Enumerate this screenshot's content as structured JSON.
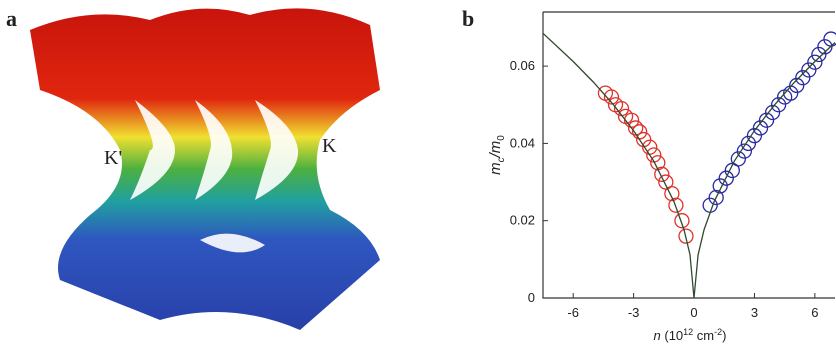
{
  "panel_a": {
    "label": "a",
    "valley_left": "K'",
    "valley_right": "K"
  },
  "chart_data": {
    "type": "scatter",
    "panel_label": "b",
    "x_label": [
      "n",
      " (10",
      "12",
      " cm",
      "-2",
      ")"
    ],
    "y_label": [
      "m",
      "c",
      "/m",
      "0"
    ],
    "xlim": [
      -7.5,
      7
    ],
    "ylim": [
      0,
      0.074
    ],
    "xticks": [
      -6,
      -3,
      0,
      3,
      6
    ],
    "yticks": [
      0,
      0.02,
      0.04,
      0.06
    ],
    "series": [
      {
        "mode": "markers",
        "color": "#e0302a",
        "x": [
          -4.4,
          -4.1,
          -3.9,
          -3.6,
          -3.4,
          -3.1,
          -2.9,
          -2.7,
          -2.5,
          -2.2,
          -2.0,
          -1.8,
          -1.6,
          -1.4,
          -1.1,
          -0.9,
          -0.6,
          -0.4
        ],
        "values": [
          0.053,
          0.052,
          0.05,
          0.049,
          0.047,
          0.046,
          0.044,
          0.043,
          0.041,
          0.039,
          0.037,
          0.035,
          0.032,
          0.03,
          0.027,
          0.024,
          0.02,
          0.016
        ]
      },
      {
        "mode": "markers",
        "color": "#2a2aa0",
        "x": [
          0.8,
          1.1,
          1.3,
          1.6,
          1.9,
          2.2,
          2.5,
          2.7,
          3.0,
          3.3,
          3.6,
          3.9,
          4.2,
          4.5,
          4.8,
          5.1,
          5.4,
          5.7,
          6.0,
          6.2,
          6.5,
          6.8
        ],
        "values": [
          0.024,
          0.026,
          0.029,
          0.031,
          0.033,
          0.036,
          0.038,
          0.04,
          0.042,
          0.044,
          0.046,
          0.048,
          0.05,
          0.052,
          0.053,
          0.055,
          0.057,
          0.059,
          0.061,
          0.063,
          0.065,
          0.067
        ]
      },
      {
        "mode": "line",
        "color": "#2f4a2f",
        "x": [
          -7.5,
          -6,
          -5,
          -4,
          -3,
          -2,
          -1,
          -0.5,
          -0.2,
          0,
          0.2,
          0.5,
          1,
          2,
          3,
          4,
          5,
          6,
          7
        ],
        "values": [
          0.0685,
          0.0612,
          0.0559,
          0.05,
          0.0433,
          0.0354,
          0.025,
          0.0177,
          0.0112,
          0,
          0.0112,
          0.0177,
          0.025,
          0.0354,
          0.0433,
          0.05,
          0.0559,
          0.0612,
          0.0661
        ]
      }
    ]
  }
}
